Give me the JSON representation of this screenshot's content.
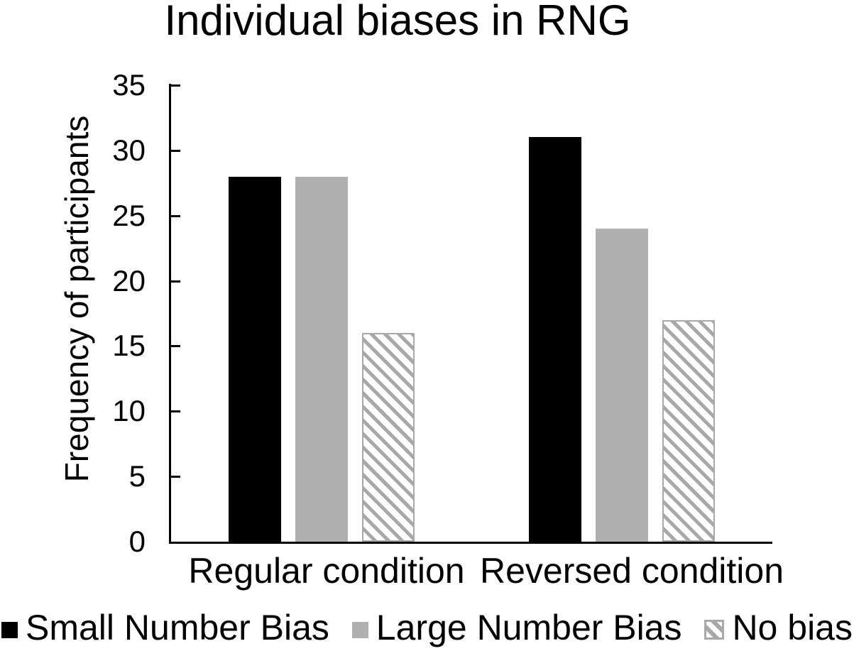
{
  "title": "Individual biases in RNG",
  "y_axis": {
    "label": "Frequency of participants",
    "tick_values": [
      35,
      30,
      25,
      20,
      15,
      10,
      5,
      0
    ]
  },
  "legend": {
    "position": "bottom",
    "items": [
      {
        "label": "Small Number Bias",
        "swatch": "black-filled-square"
      },
      {
        "label": "Large Number Bias",
        "swatch": "gray-filled-square"
      },
      {
        "label": "No bias",
        "swatch": "diagonal-hatched-square"
      }
    ]
  },
  "colors": {
    "bar_black": "#000000",
    "bar_gray": "#b0b0b0",
    "hatch_stripe": "#a8a8a8",
    "hatch_border": "#a9a9a9",
    "axis": "#000000",
    "text": "#000000",
    "background": "#ffffff"
  },
  "chart_data": {
    "type": "bar",
    "title": "Individual biases in RNG",
    "categories": [
      "Regular condition",
      "Reversed condition"
    ],
    "series": [
      {
        "name": "Small Number Bias",
        "style": "solid-black",
        "values": [
          28,
          31
        ]
      },
      {
        "name": "Large Number Bias",
        "style": "solid-gray",
        "values": [
          28,
          24
        ]
      },
      {
        "name": "No bias",
        "style": "diagonal-hatch",
        "values": [
          16,
          17
        ]
      }
    ],
    "xlabel": "",
    "ylabel": "Frequency of participants",
    "ylim": [
      0,
      35
    ],
    "ytick_step": 5,
    "grid": false,
    "legend_position": "bottom"
  }
}
